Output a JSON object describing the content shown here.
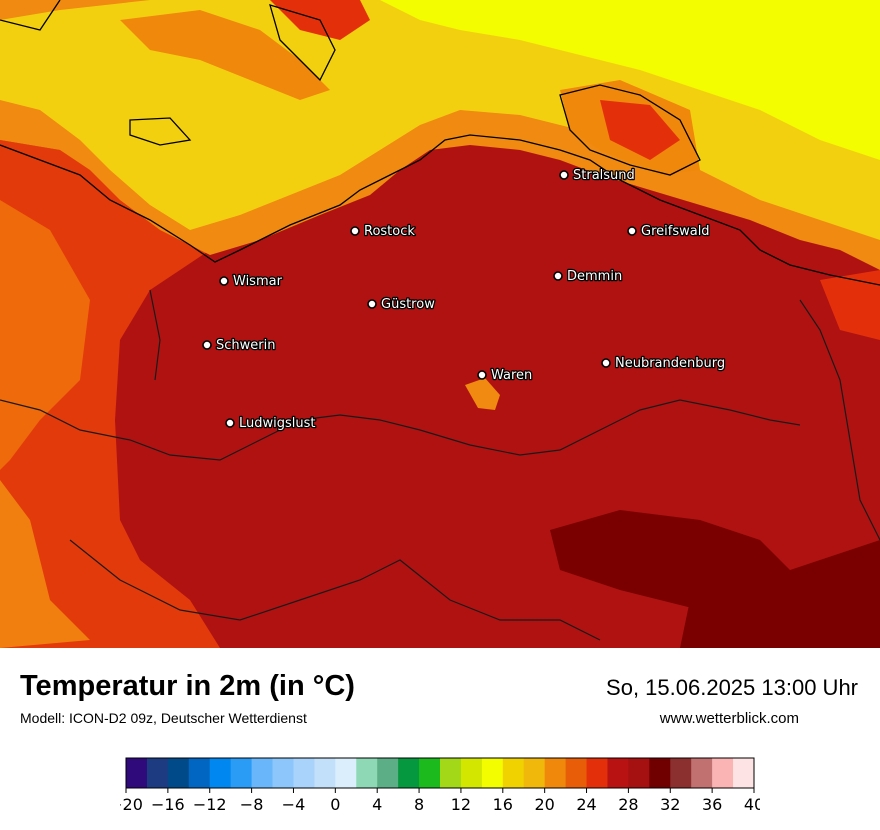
{
  "header": {
    "title": "Temperatur in 2m (in °C)",
    "model": "Modell: ICON-D2 09z, Deutscher Wetterdienst",
    "datetime": "So, 15.06.2025 13:00 Uhr",
    "website": "www.wetterblick.com"
  },
  "cities": [
    {
      "name": "Stralsund"
    },
    {
      "name": "Rostock"
    },
    {
      "name": "Greifswald"
    },
    {
      "name": "Wismar"
    },
    {
      "name": "Demmin"
    },
    {
      "name": "Güstrow"
    },
    {
      "name": "Schwerin"
    },
    {
      "name": "Neubrandenburg"
    },
    {
      "name": "Waren"
    },
    {
      "name": "Ludwigslust"
    }
  ],
  "legend": {
    "ticks": [
      "−20",
      "−16",
      "−12",
      "−8",
      "−4",
      "0",
      "4",
      "8",
      "12",
      "16",
      "20",
      "24",
      "28",
      "32",
      "36",
      "40"
    ],
    "colors": [
      "#2e0a7a",
      "#1d3b80",
      "#004a8a",
      "#0066c2",
      "#0088f0",
      "#2a9cf5",
      "#6ab6fb",
      "#8cc6fb",
      "#a9d3fb",
      "#c3e0fb",
      "#dbeefc",
      "#8ed8b6",
      "#5cae87",
      "#06983e",
      "#1cba1c",
      "#a2d817",
      "#d2e600",
      "#f4fc00",
      "#f0d200",
      "#f0b80a",
      "#f0880c",
      "#e85e08",
      "#e4300a",
      "#b81212",
      "#a51010",
      "#700000",
      "#8c2f2f",
      "#c27171",
      "#fbb4b4",
      "#fde3e3"
    ],
    "range": [
      -20,
      40
    ]
  }
}
